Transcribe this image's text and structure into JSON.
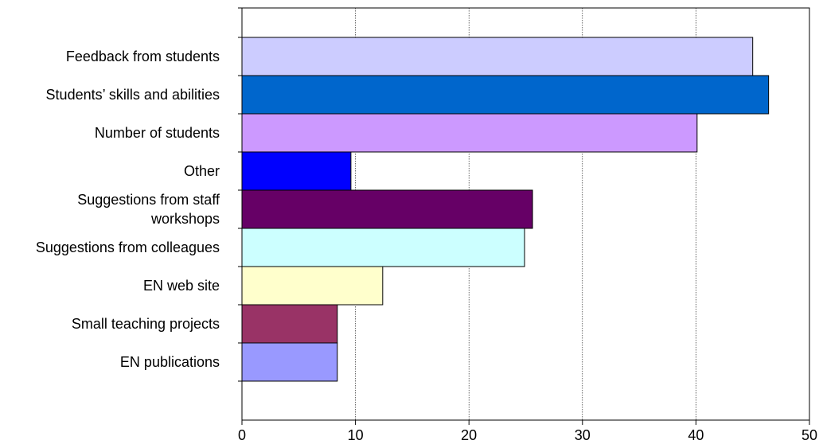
{
  "chart_data": {
    "type": "bar",
    "orientation": "horizontal",
    "title": "",
    "xlabel": "",
    "ylabel": "",
    "xlim": [
      0,
      50
    ],
    "x_ticks": [
      0,
      10,
      20,
      30,
      40,
      50
    ],
    "grid": "vertical",
    "legend": "none",
    "categories": [
      {
        "label_lines": [
          "Feedback from students"
        ],
        "value": 45,
        "color": "#ccccff"
      },
      {
        "label_lines": [
          "Students’ skills and abilities"
        ],
        "value": 46.4,
        "color": "#0066cc"
      },
      {
        "label_lines": [
          "Number of students"
        ],
        "value": 40.1,
        "color": "#cc99ff"
      },
      {
        "label_lines": [
          "Other"
        ],
        "value": 9.6,
        "color": "#0000ff"
      },
      {
        "label_lines": [
          "Suggestions from staff",
          "workshops"
        ],
        "value": 25.6,
        "color": "#660066"
      },
      {
        "label_lines": [
          "Suggestions from colleagues"
        ],
        "value": 24.9,
        "color": "#ccffff"
      },
      {
        "label_lines": [
          "EN web site"
        ],
        "value": 12.4,
        "color": "#ffffcc"
      },
      {
        "label_lines": [
          "Small teaching projects"
        ],
        "value": 8.4,
        "color": "#993366"
      },
      {
        "label_lines": [
          "EN  publications"
        ],
        "value": 8.4,
        "color": "#9999ff"
      }
    ]
  }
}
